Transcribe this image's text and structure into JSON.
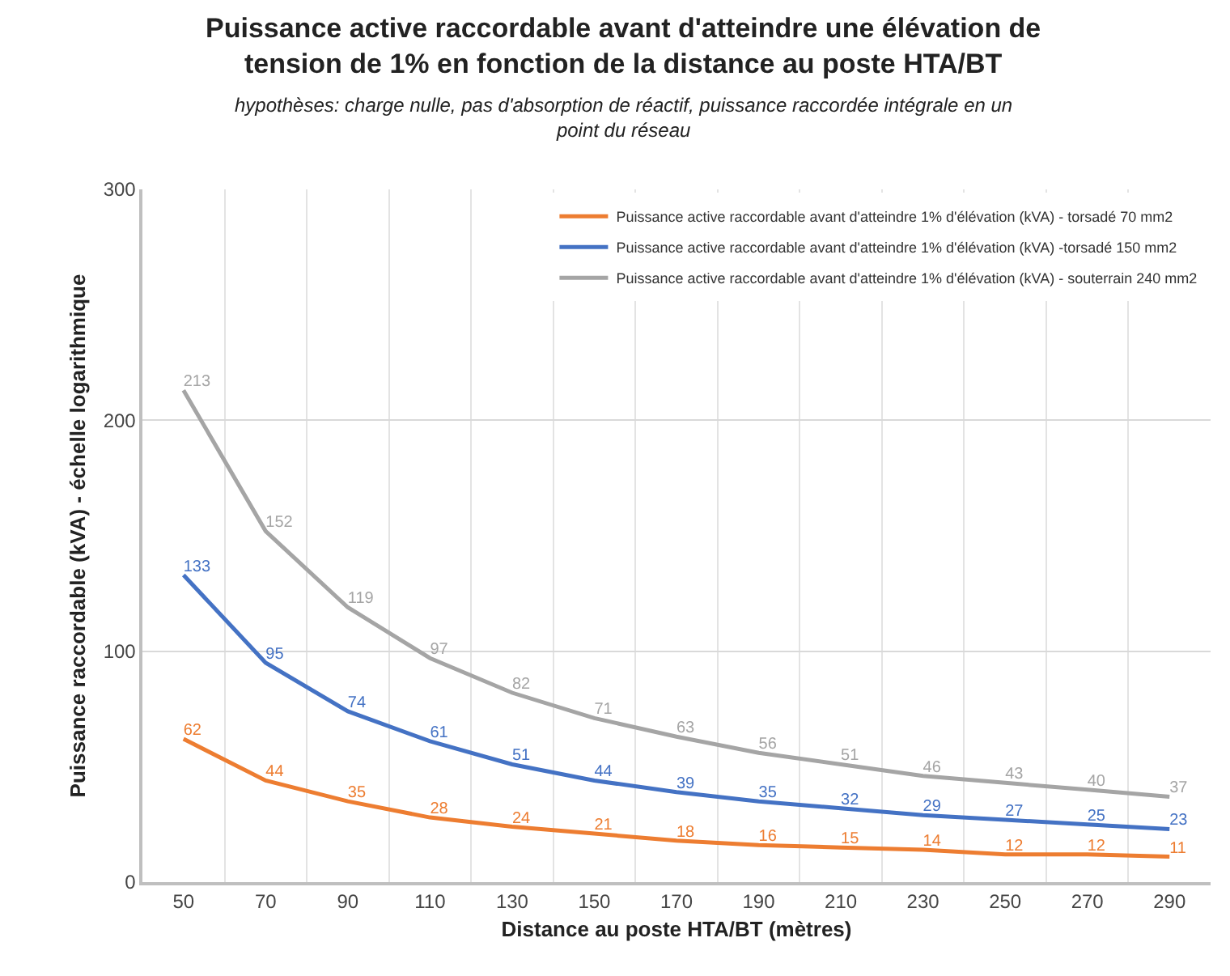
{
  "chart_data": {
    "type": "line",
    "title": "Puissance active raccordable avant d'atteindre une élévation de tension de 1% en fonction de la distance au poste HTA/BT",
    "subtitle": "hypothèses: charge nulle, pas d'absorption de réactif, puissance raccordée intégrale en un point du réseau",
    "xlabel": "Distance au poste HTA/BT (mètres)",
    "ylabel": "Puissance raccordable (kVA) - échelle logarithmique",
    "categories": [
      "50",
      "70",
      "90",
      "110",
      "130",
      "150",
      "170",
      "190",
      "210",
      "230",
      "250",
      "270",
      "290"
    ],
    "series": [
      {
        "name": "Puissance active raccordable avant d'atteindre 1% d'élévation (kVA) - torsadé 70 mm2",
        "color": "#ed7d31",
        "values": [
          62,
          44,
          35,
          28,
          24,
          21,
          18,
          16,
          15,
          14,
          12,
          12,
          11
        ]
      },
      {
        "name": "Puissance active raccordable avant d'atteindre 1% d'élévation (kVA) -torsadé 150 mm2",
        "color": "#4472c4",
        "values": [
          133,
          95,
          74,
          61,
          51,
          44,
          39,
          35,
          32,
          29,
          27,
          25,
          23
        ]
      },
      {
        "name": "Puissance active raccordable avant d'atteindre 1% d'élévation (kVA) - souterrain 240 mm2",
        "color": "#a5a5a5",
        "values": [
          213,
          152,
          119,
          97,
          82,
          71,
          63,
          56,
          51,
          46,
          43,
          40,
          37
        ]
      }
    ],
    "ylim": [
      0,
      300
    ],
    "yticks": [
      0,
      100,
      200,
      300
    ],
    "grid": true,
    "legend": "top right",
    "data_labels": true
  }
}
